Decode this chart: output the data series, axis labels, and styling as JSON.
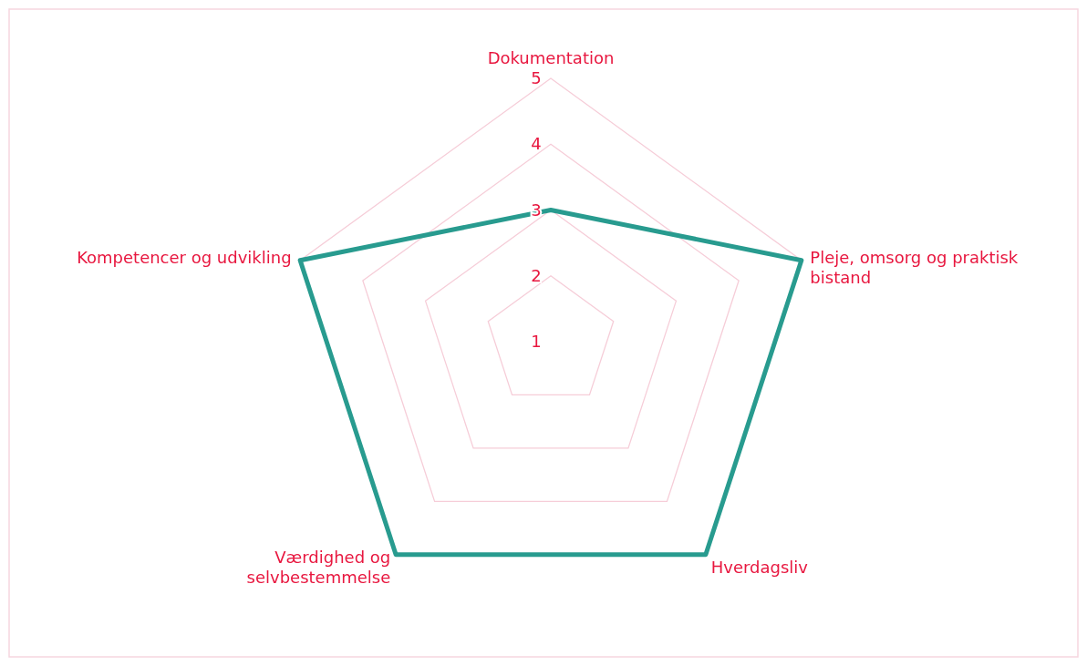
{
  "chart_data": {
    "type": "radar",
    "categories": [
      "Dokumentation",
      "Pleje, omsorg og praktisk bistand",
      "Hverdagsliv",
      "Værdighed og selvbestemmelse",
      "Kompetencer og udvikling"
    ],
    "series": [
      {
        "color": "#289b8f",
        "values": [
          3,
          5,
          5,
          5,
          5
        ]
      }
    ],
    "ylim": [
      1,
      5
    ],
    "yticks": [
      1,
      2,
      3,
      4,
      5
    ],
    "grid": true,
    "marker": "none",
    "line_style": "solid"
  }
}
